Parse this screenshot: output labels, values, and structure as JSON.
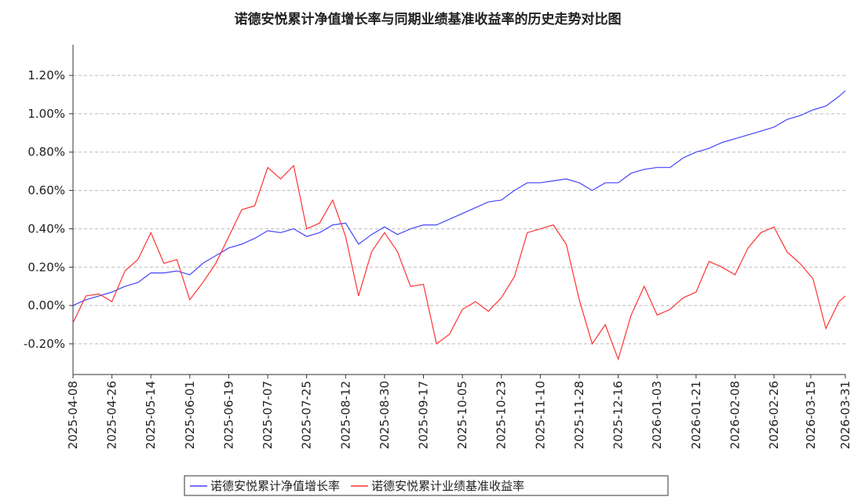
{
  "chart_data": {
    "type": "line",
    "title": "诺德安悦累计净值增长率与同期业绩基准收益率的历史走势对比图",
    "x": [
      "2025-04-08",
      "2025-04-14",
      "2025-04-20",
      "2025-04-26",
      "2025-05-02",
      "2025-05-08",
      "2025-05-14",
      "2025-05-20",
      "2025-05-26",
      "2025-06-01",
      "2025-06-07",
      "2025-06-13",
      "2025-06-19",
      "2025-06-25",
      "2025-07-01",
      "2025-07-07",
      "2025-07-13",
      "2025-07-19",
      "2025-07-25",
      "2025-07-31",
      "2025-08-06",
      "2025-08-12",
      "2025-08-18",
      "2025-08-24",
      "2025-08-30",
      "2025-09-05",
      "2025-09-11",
      "2025-09-17",
      "2025-09-23",
      "2025-09-29",
      "2025-10-05",
      "2025-10-11",
      "2025-10-17",
      "2025-10-23",
      "2025-10-29",
      "2025-11-04",
      "2025-11-10",
      "2025-11-16",
      "2025-11-22",
      "2025-11-28",
      "2025-12-04",
      "2025-12-10",
      "2025-12-16",
      "2025-12-22",
      "2025-12-28",
      "2026-01-03",
      "2026-01-09",
      "2026-01-15",
      "2026-01-21",
      "2026-01-27",
      "2026-02-02",
      "2026-02-08",
      "2026-02-14",
      "2026-02-20",
      "2026-02-26",
      "2026-03-04",
      "2026-03-10",
      "2026-03-16",
      "2026-03-22",
      "2026-03-28",
      "2026-03-31"
    ],
    "series": [
      {
        "name": "诺德安悦累计净值增长率",
        "color": "#4444ff",
        "values": [
          0.0,
          0.03,
          0.05,
          0.07,
          0.1,
          0.12,
          0.17,
          0.17,
          0.18,
          0.16,
          0.22,
          0.26,
          0.3,
          0.32,
          0.35,
          0.39,
          0.38,
          0.4,
          0.36,
          0.38,
          0.42,
          0.43,
          0.32,
          0.37,
          0.41,
          0.37,
          0.4,
          0.42,
          0.42,
          0.45,
          0.48,
          0.51,
          0.54,
          0.55,
          0.6,
          0.64,
          0.64,
          0.65,
          0.66,
          0.64,
          0.6,
          0.64,
          0.64,
          0.69,
          0.71,
          0.72,
          0.72,
          0.77,
          0.8,
          0.82,
          0.85,
          0.87,
          0.89,
          0.91,
          0.93,
          0.97,
          0.99,
          1.02,
          1.04,
          1.09,
          1.12
        ]
      },
      {
        "name": "诺德安悦累计业绩基准收益率",
        "color": "#ff3333",
        "values": [
          -0.09,
          0.05,
          0.06,
          0.02,
          0.18,
          0.24,
          0.38,
          0.22,
          0.24,
          0.03,
          0.12,
          0.22,
          0.36,
          0.5,
          0.52,
          0.72,
          0.66,
          0.73,
          0.4,
          0.43,
          0.55,
          0.36,
          0.05,
          0.28,
          0.38,
          0.28,
          0.1,
          0.11,
          -0.2,
          -0.15,
          -0.02,
          0.02,
          -0.03,
          0.04,
          0.15,
          0.38,
          0.4,
          0.42,
          0.32,
          0.03,
          -0.2,
          -0.1,
          -0.28,
          -0.05,
          0.1,
          -0.05,
          -0.02,
          0.04,
          0.07,
          0.23,
          0.2,
          0.16,
          0.3,
          0.38,
          0.41,
          0.28,
          0.22,
          0.14,
          -0.12,
          0.02,
          0.05
        ]
      }
    ],
    "xlim": [
      "2025-04-08",
      "2026-03-31"
    ],
    "xticks": [
      "2025-04-08",
      "2025-04-26",
      "2025-05-14",
      "2025-06-01",
      "2025-06-19",
      "2025-07-07",
      "2025-07-25",
      "2025-08-12",
      "2025-08-30",
      "2025-09-17",
      "2025-10-05",
      "2025-10-23",
      "2025-11-10",
      "2025-11-28",
      "2025-12-16",
      "2026-01-03",
      "2026-01-21",
      "2026-02-08",
      "2026-02-26",
      "2026-03-15",
      "2026-03-31"
    ],
    "ylim": [
      -0.36,
      1.36
    ],
    "yticks": [
      {
        "value": -0.2,
        "label": "-0.20%"
      },
      {
        "value": 0,
        "label": "0.00%"
      },
      {
        "value": 0.2,
        "label": "0.20%"
      },
      {
        "value": 0.4,
        "label": "0.40%"
      },
      {
        "value": 0.6,
        "label": "0.60%"
      },
      {
        "value": 0.8,
        "label": "0.80%"
      },
      {
        "value": 1.0,
        "label": "1.00%"
      },
      {
        "value": 1.2,
        "label": "1.20%"
      }
    ],
    "grid": true
  }
}
